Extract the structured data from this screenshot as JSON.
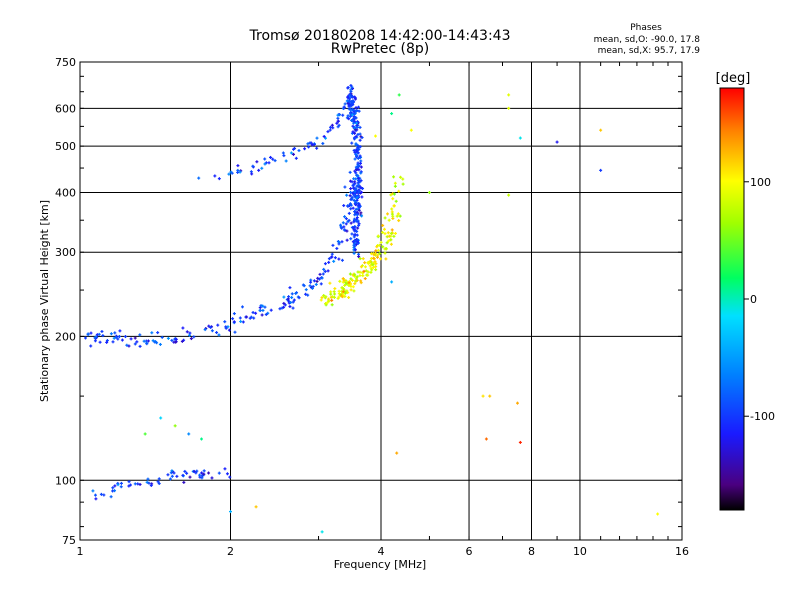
{
  "title": "Tromsø 20180208 14:42:00-14:43:43",
  "subtitle": "RwPretec (8p)",
  "phases": {
    "heading": "Phases",
    "line_o": "mean, sd,O: -90.0, 17.8",
    "line_x": "mean, sd,X:  95.7, 17.9"
  },
  "colorbar": {
    "unit": "[deg]",
    "range": [
      -180,
      180
    ],
    "ticks": [
      "100",
      "0",
      "-100"
    ]
  },
  "chart_data": {
    "type": "scatter",
    "xlabel": "Frequency [MHz]",
    "ylabel": "Stationary phase Virtual Height [km]",
    "xscale": "log",
    "yscale": "log",
    "xlim": [
      1,
      16
    ],
    "ylim": [
      75,
      750
    ],
    "xticks": [
      "1",
      "2",
      "4",
      "6",
      "8",
      "10",
      "16"
    ],
    "yticks": [
      "75",
      "100",
      "200",
      "300",
      "400",
      "500",
      "600",
      "750"
    ],
    "grid": true,
    "series": [
      {
        "ptype": "e",
        "x": [
          1.03,
          1.2,
          1.45,
          1.7,
          2.0
        ],
        "y": [
          91,
          97,
          101,
          103,
          104
        ],
        "phase": -100
      },
      {
        "ptype": "o_low",
        "x": [
          1.05,
          1.15,
          1.3,
          1.5,
          1.7,
          1.95,
          2.25,
          2.6,
          2.9,
          3.15,
          3.35,
          3.48,
          3.52
        ],
        "y": [
          197,
          198,
          196,
          198,
          203,
          211,
          223,
          237,
          255,
          280,
          320,
          380,
          430
        ],
        "phase": -98
      },
      {
        "ptype": "o_high",
        "x": [
          1.7,
          2.0,
          2.4,
          2.8,
          3.1,
          3.3,
          3.45
        ],
        "y": [
          420,
          438,
          462,
          493,
          525,
          565,
          610
        ],
        "phase": -92
      },
      {
        "ptype": "o_vert",
        "x": [
          3.55,
          3.6,
          3.6,
          3.55,
          3.45
        ],
        "y": [
          300,
          380,
          470,
          570,
          650
        ],
        "phase": -98
      },
      {
        "ptype": "x",
        "x": [
          3.05,
          3.3,
          3.55,
          3.8,
          4.0,
          4.2,
          4.35
        ],
        "y": [
          235,
          247,
          262,
          282,
          305,
          340,
          430
        ],
        "phase": 95
      },
      {
        "ptype": "noise",
        "x": [
          1.35,
          1.45,
          1.55,
          1.65,
          1.75,
          2.0,
          2.25,
          3.05,
          4.3,
          4.35,
          4.6,
          5.0,
          6.6,
          7.2,
          7.6,
          9.0,
          11.0,
          11.0,
          14.3,
          7.2,
          7.2,
          4.2,
          3.9,
          4.2,
          6.4,
          6.5,
          7.5,
          7.6
        ],
        "y": [
          125,
          135,
          130,
          125,
          122,
          86,
          88,
          78,
          114,
          640,
          540,
          400,
          150,
          640,
          520,
          510,
          540,
          445,
          85,
          600,
          395,
          585,
          525,
          260,
          150,
          122,
          145,
          120
        ],
        "phase": [
          40,
          -20,
          60,
          -60,
          10,
          -40,
          120,
          -10,
          130,
          30,
          100,
          60,
          120,
          90,
          -10,
          -120,
          120,
          -100,
          100,
          90,
          80,
          10,
          100,
          -40,
          110,
          150,
          130,
          170
        ]
      }
    ]
  }
}
